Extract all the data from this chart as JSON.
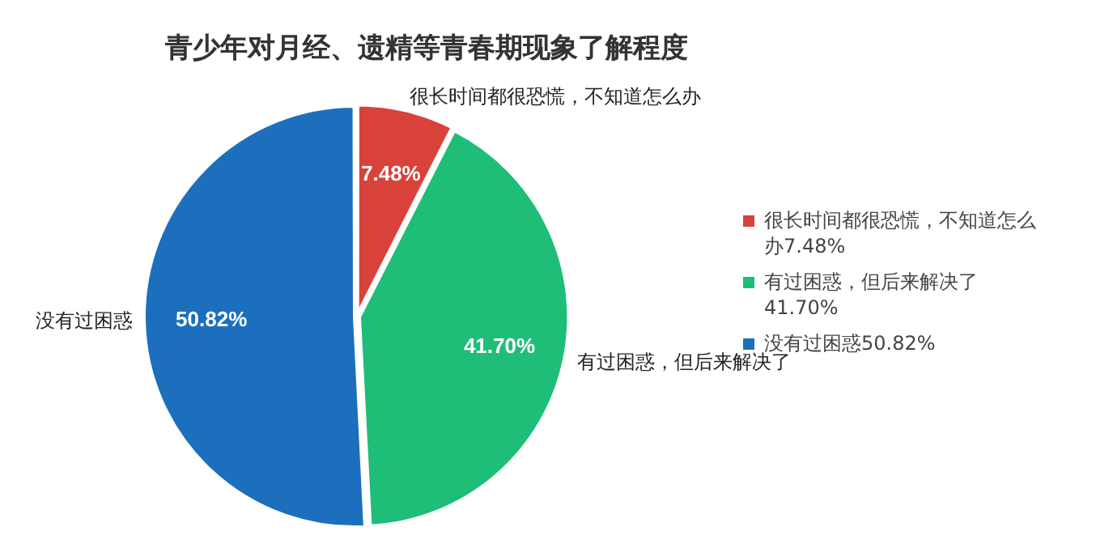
{
  "chart_data": {
    "type": "pie",
    "title": "青少年对月经、遗精等青春期现象了解程度",
    "categories": [
      "很长时间都很恐慌，不知道怎么办",
      "有过困惑，但后来解决了",
      "没有过困惑"
    ],
    "values": [
      7.48,
      41.7,
      50.82
    ],
    "value_labels": [
      "7.48%",
      "41.70%",
      "50.82%"
    ],
    "colors": [
      "#d9423a",
      "#1fbe78",
      "#1c6fbd"
    ],
    "legend": "right"
  }
}
